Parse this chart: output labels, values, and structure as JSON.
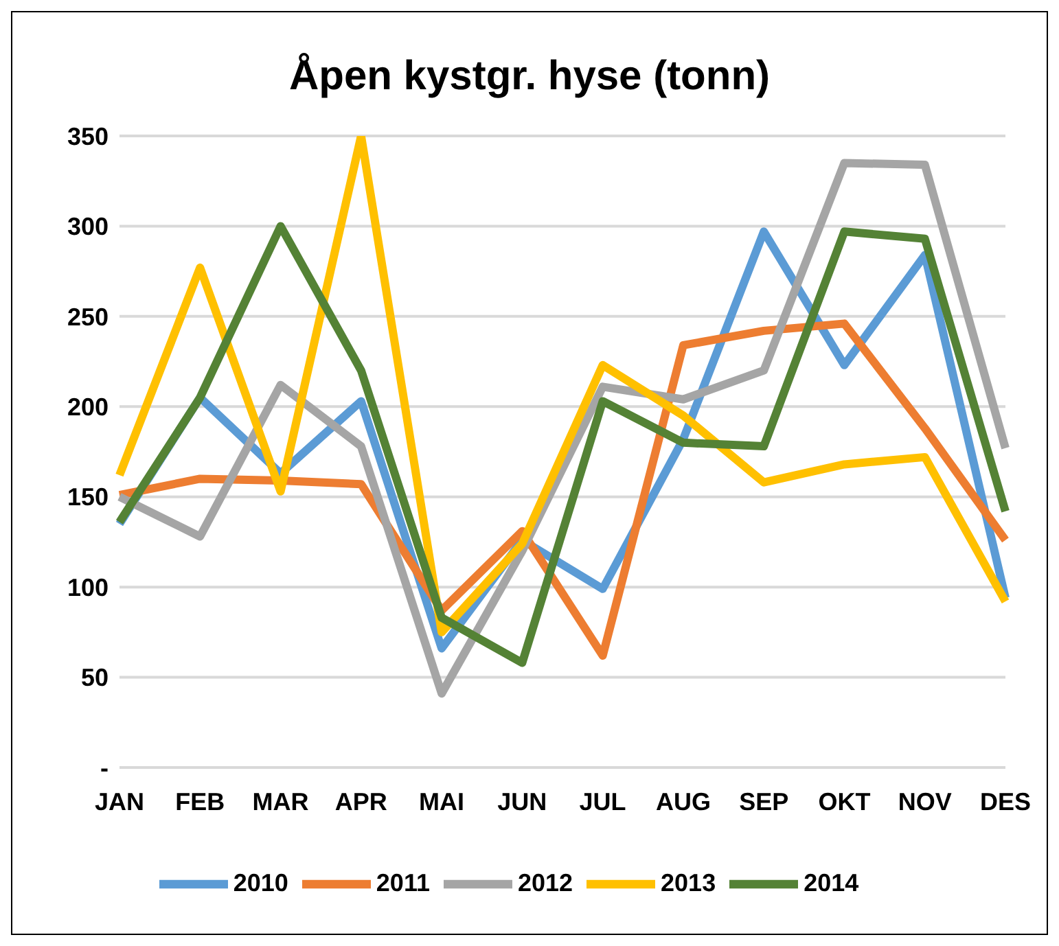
{
  "chart_data": {
    "type": "line",
    "title": "Åpen kystgr. hyse (tonn)",
    "categories": [
      "JAN",
      "FEB",
      "MAR",
      "APR",
      "MAI",
      "JUN",
      "JUL",
      "AUG",
      "SEP",
      "OKT",
      "NOV",
      "DES"
    ],
    "series": [
      {
        "name": "2010",
        "color": "#5b9bd5",
        "values": [
          135,
          205,
          163,
          203,
          66,
          126,
          99,
          182,
          297,
          223,
          284,
          94
        ]
      },
      {
        "name": "2011",
        "color": "#ed7d31",
        "values": [
          151,
          160,
          159,
          157,
          87,
          131,
          62,
          234,
          242,
          246,
          188,
          126
        ]
      },
      {
        "name": "2012",
        "color": "#a5a5a5",
        "values": [
          150,
          128,
          212,
          178,
          41,
          120,
          211,
          204,
          220,
          335,
          334,
          177
        ]
      },
      {
        "name": "2013",
        "color": "#ffc000",
        "values": [
          162,
          277,
          153,
          350,
          75,
          124,
          223,
          195,
          158,
          168,
          172,
          92
        ]
      },
      {
        "name": "2014",
        "color": "#548235",
        "values": [
          136,
          205,
          300,
          220,
          83,
          58,
          203,
          180,
          178,
          297,
          293,
          142
        ]
      }
    ],
    "ylim": [
      0,
      350
    ],
    "yticks": [
      {
        "value": 0,
        "label": "-"
      },
      50,
      100,
      150,
      200,
      250,
      300,
      350
    ],
    "grid": "y",
    "legend": "bottom",
    "marker": "none",
    "line_style": "solid"
  }
}
